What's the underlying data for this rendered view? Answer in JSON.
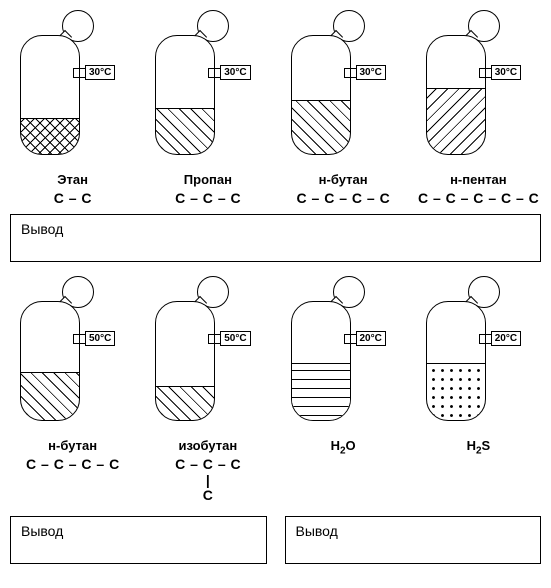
{
  "row1": {
    "temperature": "30°C",
    "items": [
      {
        "name": "Этан",
        "formula_c": 2,
        "fill_pct": 30,
        "pattern": "cross"
      },
      {
        "name": "Пропан",
        "formula_c": 3,
        "fill_pct": 38,
        "pattern": "diag"
      },
      {
        "name": "н-бутан",
        "formula_c": 4,
        "fill_pct": 45,
        "pattern": "diag"
      },
      {
        "name": "н-пентан",
        "formula_c": 5,
        "fill_pct": 55,
        "pattern": "diag2"
      }
    ],
    "conclusion_label": "Вывод"
  },
  "row2": {
    "left": {
      "items": [
        {
          "name": "н-бутан",
          "temp": "50°C",
          "formula_c": 4,
          "formula_branch": false,
          "fill_pct": 40,
          "pattern": "diag"
        },
        {
          "name": "изобутан",
          "temp": "50°C",
          "formula_c": 3,
          "formula_branch": true,
          "fill_pct": 28,
          "pattern": "diag"
        }
      ],
      "conclusion_label": "Вывод"
    },
    "right": {
      "items": [
        {
          "name": "H2O",
          "name_html": "H<span class='sub'>2</span>O",
          "temp": "20°C",
          "fill_pct": 48,
          "pattern": "dash"
        },
        {
          "name": "H2S",
          "name_html": "H<span class='sub'>2</span>S",
          "temp": "20°C",
          "fill_pct": 48,
          "pattern": "dots"
        }
      ],
      "conclusion_label": "Вывод"
    }
  },
  "style": {
    "stroke": "#000000",
    "background": "#ffffff",
    "font": "Arial"
  }
}
